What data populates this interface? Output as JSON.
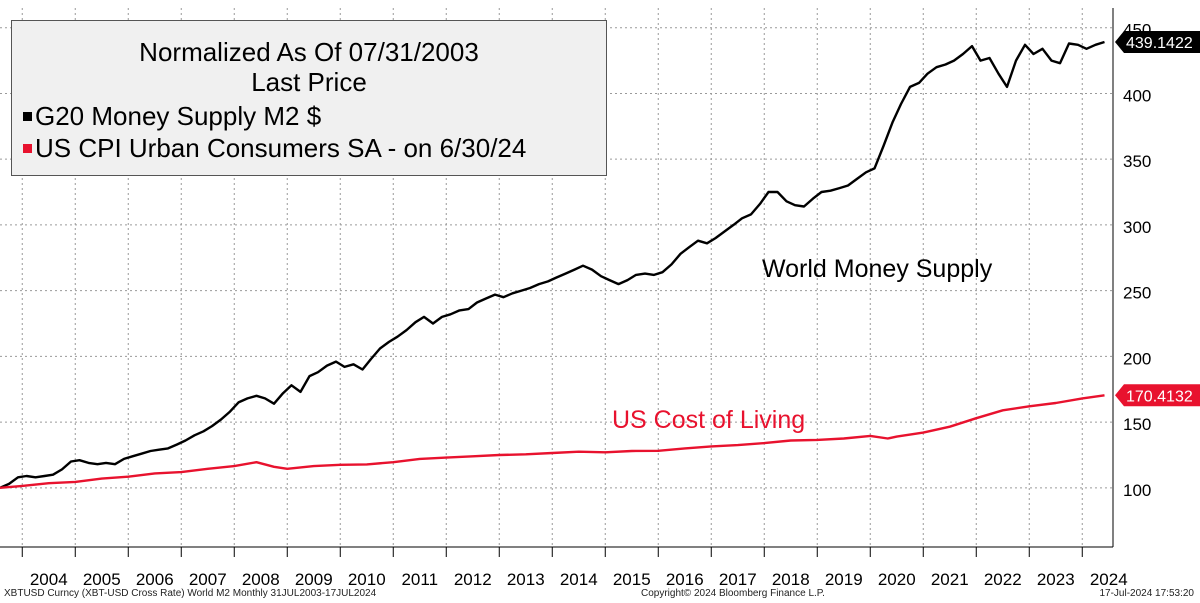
{
  "chart_data": {
    "type": "line",
    "title": "Normalized As Of 07/31/2003",
    "subtitle": "Last Price",
    "x_tick_labels": [
      "2004",
      "2005",
      "2006",
      "2007",
      "2008",
      "2009",
      "2010",
      "2011",
      "2012",
      "2013",
      "2014",
      "2015",
      "2016",
      "2017",
      "2018",
      "2019",
      "2020",
      "2021",
      "2022",
      "2023",
      "2024"
    ],
    "y_ticks": [
      100,
      150,
      200,
      250,
      300,
      350,
      400,
      450
    ],
    "ylim": [
      55,
      465
    ],
    "xlim": [
      2003.58,
      2024.58
    ],
    "grid": true,
    "legend_placement": "top-left",
    "series": [
      {
        "name": "G20 Money Supply M2 $",
        "annotation": "World Money Supply",
        "last_value": "439.1422",
        "color": "#000000",
        "points": [
          [
            2003.58,
            100
          ],
          [
            2003.75,
            103
          ],
          [
            2003.92,
            108
          ],
          [
            2004.08,
            109
          ],
          [
            2004.25,
            108
          ],
          [
            2004.42,
            109
          ],
          [
            2004.58,
            110
          ],
          [
            2004.75,
            114
          ],
          [
            2004.92,
            120
          ],
          [
            2005.08,
            121
          ],
          [
            2005.25,
            119
          ],
          [
            2005.42,
            118
          ],
          [
            2005.58,
            119
          ],
          [
            2005.75,
            118
          ],
          [
            2005.92,
            122
          ],
          [
            2006.08,
            124
          ],
          [
            2006.25,
            126
          ],
          [
            2006.42,
            128
          ],
          [
            2006.58,
            129
          ],
          [
            2006.75,
            130
          ],
          [
            2006.92,
            133
          ],
          [
            2007.08,
            136
          ],
          [
            2007.25,
            140
          ],
          [
            2007.42,
            143
          ],
          [
            2007.58,
            147
          ],
          [
            2007.75,
            152
          ],
          [
            2007.92,
            158
          ],
          [
            2008.08,
            165
          ],
          [
            2008.25,
            168
          ],
          [
            2008.42,
            170
          ],
          [
            2008.58,
            168
          ],
          [
            2008.75,
            164
          ],
          [
            2008.92,
            172
          ],
          [
            2009.08,
            178
          ],
          [
            2009.25,
            173
          ],
          [
            2009.42,
            185
          ],
          [
            2009.58,
            188
          ],
          [
            2009.75,
            193
          ],
          [
            2009.92,
            196
          ],
          [
            2010.08,
            192
          ],
          [
            2010.25,
            194
          ],
          [
            2010.42,
            190
          ],
          [
            2010.58,
            198
          ],
          [
            2010.75,
            206
          ],
          [
            2010.92,
            211
          ],
          [
            2011.08,
            215
          ],
          [
            2011.25,
            220
          ],
          [
            2011.42,
            226
          ],
          [
            2011.58,
            230
          ],
          [
            2011.75,
            225
          ],
          [
            2011.92,
            230
          ],
          [
            2012.08,
            232
          ],
          [
            2012.25,
            235
          ],
          [
            2012.42,
            236
          ],
          [
            2012.58,
            241
          ],
          [
            2012.75,
            244
          ],
          [
            2012.92,
            247
          ],
          [
            2013.08,
            245
          ],
          [
            2013.25,
            248
          ],
          [
            2013.42,
            250
          ],
          [
            2013.58,
            252
          ],
          [
            2013.75,
            255
          ],
          [
            2013.92,
            257
          ],
          [
            2014.08,
            260
          ],
          [
            2014.25,
            263
          ],
          [
            2014.42,
            266
          ],
          [
            2014.58,
            269
          ],
          [
            2014.75,
            266
          ],
          [
            2014.92,
            261
          ],
          [
            2015.08,
            258
          ],
          [
            2015.25,
            255
          ],
          [
            2015.42,
            258
          ],
          [
            2015.58,
            262
          ],
          [
            2015.75,
            263
          ],
          [
            2015.92,
            262
          ],
          [
            2016.08,
            264
          ],
          [
            2016.25,
            270
          ],
          [
            2016.42,
            278
          ],
          [
            2016.58,
            283
          ],
          [
            2016.75,
            288
          ],
          [
            2016.92,
            286
          ],
          [
            2017.08,
            290
          ],
          [
            2017.25,
            295
          ],
          [
            2017.42,
            300
          ],
          [
            2017.58,
            305
          ],
          [
            2017.75,
            308
          ],
          [
            2017.92,
            316
          ],
          [
            2018.08,
            325
          ],
          [
            2018.25,
            325
          ],
          [
            2018.42,
            318
          ],
          [
            2018.58,
            315
          ],
          [
            2018.75,
            314
          ],
          [
            2018.92,
            320
          ],
          [
            2019.08,
            325
          ],
          [
            2019.25,
            326
          ],
          [
            2019.42,
            328
          ],
          [
            2019.58,
            330
          ],
          [
            2019.75,
            335
          ],
          [
            2019.92,
            340
          ],
          [
            2020.08,
            343
          ],
          [
            2020.25,
            360
          ],
          [
            2020.42,
            378
          ],
          [
            2020.58,
            392
          ],
          [
            2020.75,
            405
          ],
          [
            2020.92,
            408
          ],
          [
            2021.08,
            415
          ],
          [
            2021.25,
            420
          ],
          [
            2021.42,
            422
          ],
          [
            2021.58,
            425
          ],
          [
            2021.75,
            430
          ],
          [
            2021.92,
            436
          ],
          [
            2022.08,
            425
          ],
          [
            2022.25,
            427
          ],
          [
            2022.42,
            415
          ],
          [
            2022.58,
            405
          ],
          [
            2022.75,
            425
          ],
          [
            2022.92,
            437
          ],
          [
            2023.08,
            430
          ],
          [
            2023.25,
            434
          ],
          [
            2023.42,
            425
          ],
          [
            2023.58,
            423
          ],
          [
            2023.75,
            438
          ],
          [
            2023.92,
            437
          ],
          [
            2024.08,
            434
          ],
          [
            2024.25,
            437
          ],
          [
            2024.42,
            439.1422
          ]
        ]
      },
      {
        "name": "US CPI Urban Consumers SA -  on 6/30/24",
        "annotation": "US Cost of Living",
        "last_value": "170.4132",
        "color": "#e8122e",
        "points": [
          [
            2003.58,
            100
          ],
          [
            2004.0,
            101.5
          ],
          [
            2004.5,
            103.5
          ],
          [
            2005.0,
            104.5
          ],
          [
            2005.5,
            107
          ],
          [
            2006.0,
            108.5
          ],
          [
            2006.5,
            111
          ],
          [
            2007.0,
            112
          ],
          [
            2007.5,
            114.5
          ],
          [
            2008.0,
            116.5
          ],
          [
            2008.42,
            119.5
          ],
          [
            2008.75,
            116
          ],
          [
            2009.0,
            114.5
          ],
          [
            2009.5,
            116.5
          ],
          [
            2010.0,
            117.5
          ],
          [
            2010.5,
            117.8
          ],
          [
            2011.0,
            119.5
          ],
          [
            2011.5,
            122
          ],
          [
            2012.0,
            123
          ],
          [
            2012.5,
            124
          ],
          [
            2013.0,
            125
          ],
          [
            2013.5,
            125.5
          ],
          [
            2014.0,
            126.5
          ],
          [
            2014.5,
            127.5
          ],
          [
            2015.0,
            127
          ],
          [
            2015.5,
            128
          ],
          [
            2016.0,
            128.2
          ],
          [
            2016.5,
            130
          ],
          [
            2017.0,
            131.5
          ],
          [
            2017.5,
            132.5
          ],
          [
            2018.0,
            134
          ],
          [
            2018.5,
            136
          ],
          [
            2019.0,
            136.5
          ],
          [
            2019.5,
            137.5
          ],
          [
            2020.0,
            139.5
          ],
          [
            2020.33,
            137.5
          ],
          [
            2020.5,
            139
          ],
          [
            2021.0,
            142
          ],
          [
            2021.5,
            146.5
          ],
          [
            2022.0,
            153
          ],
          [
            2022.5,
            159
          ],
          [
            2023.0,
            162
          ],
          [
            2023.5,
            164.5
          ],
          [
            2024.0,
            168
          ],
          [
            2024.42,
            170.4132
          ]
        ]
      }
    ]
  },
  "footer": {
    "left": "XBTUSD Curncy (XBT-USD Cross Rate) World M2  Monthly 31JUL2003-17JUL2024",
    "center": "Copyright© 2024 Bloomberg Finance L.P.",
    "right": "17-Jul-2024 17:53:20"
  }
}
